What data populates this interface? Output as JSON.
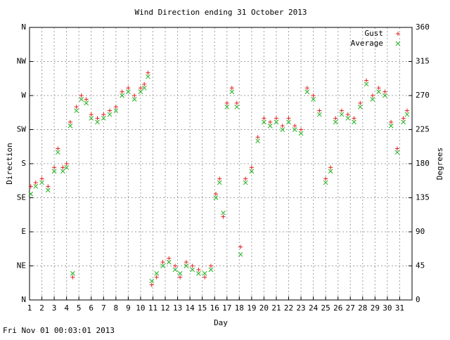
{
  "chart_data": {
    "type": "scatter",
    "title": "Wind Direction ending 31 October 2013",
    "x_label": "Day",
    "y_label": "Direction",
    "y2_label": "Degrees",
    "footer": "Fri Nov 01 00:03:01 2013",
    "xlim": [
      1,
      32
    ],
    "xticks": [
      1,
      2,
      3,
      4,
      5,
      6,
      7,
      8,
      9,
      10,
      11,
      12,
      13,
      14,
      15,
      16,
      17,
      18,
      19,
      20,
      21,
      22,
      23,
      24,
      25,
      26,
      27,
      28,
      29,
      30,
      31
    ],
    "ylim": [
      0,
      360
    ],
    "yticks": [
      {
        "value": 0,
        "label": "N"
      },
      {
        "value": 45,
        "label": "NE"
      },
      {
        "value": 90,
        "label": "E"
      },
      {
        "value": 135,
        "label": "SE"
      },
      {
        "value": 180,
        "label": "S"
      },
      {
        "value": 225,
        "label": "SW"
      },
      {
        "value": 270,
        "label": "W"
      },
      {
        "value": 315,
        "label": "NW"
      },
      {
        "value": 360,
        "label": "N"
      }
    ],
    "y2lim": [
      0,
      360
    ],
    "y2ticks": [
      0,
      45,
      90,
      135,
      180,
      225,
      270,
      315,
      360
    ],
    "grid": true,
    "legend": "top-right",
    "x": [
      1.1,
      1.5,
      2.0,
      2.5,
      3.0,
      3.3,
      3.7,
      4.0,
      4.3,
      4.5,
      4.8,
      5.2,
      5.6,
      6.0,
      6.5,
      7.0,
      7.5,
      8.0,
      8.5,
      9.0,
      9.5,
      10.0,
      10.3,
      10.6,
      10.9,
      11.3,
      11.8,
      12.3,
      12.8,
      13.2,
      13.7,
      14.2,
      14.7,
      15.2,
      15.7,
      16.1,
      16.4,
      16.7,
      17.0,
      17.4,
      17.8,
      18.1,
      18.5,
      19.0,
      19.5,
      20.0,
      20.5,
      21.0,
      21.5,
      22.0,
      22.5,
      23.0,
      23.5,
      24.0,
      24.5,
      25.0,
      25.4,
      25.8,
      26.3,
      26.8,
      27.3,
      27.8,
      28.3,
      28.8,
      29.3,
      29.8,
      30.3,
      30.8,
      31.3,
      31.6
    ],
    "series": [
      {
        "name": "Gust",
        "color": "#e02020",
        "marker": "plus",
        "values": [
          150,
          155,
          160,
          150,
          175,
          200,
          175,
          180,
          235,
          30,
          255,
          270,
          265,
          245,
          240,
          245,
          250,
          255,
          275,
          280,
          270,
          280,
          285,
          300,
          20,
          30,
          50,
          55,
          45,
          30,
          50,
          45,
          40,
          30,
          45,
          140,
          160,
          110,
          260,
          280,
          260,
          70,
          160,
          175,
          215,
          240,
          235,
          240,
          230,
          240,
          230,
          225,
          280,
          270,
          250,
          160,
          175,
          240,
          250,
          245,
          240,
          260,
          290,
          270,
          280,
          275,
          235,
          200,
          240,
          250
        ]
      },
      {
        "name": "Average",
        "color": "#20b020",
        "marker": "cross",
        "values": [
          140,
          150,
          155,
          145,
          170,
          195,
          170,
          175,
          230,
          35,
          250,
          265,
          260,
          240,
          235,
          240,
          245,
          250,
          270,
          275,
          265,
          275,
          280,
          295,
          25,
          35,
          45,
          50,
          40,
          35,
          45,
          40,
          35,
          35,
          40,
          135,
          155,
          115,
          255,
          275,
          255,
          60,
          155,
          170,
          210,
          235,
          230,
          235,
          225,
          235,
          225,
          220,
          275,
          265,
          245,
          155,
          170,
          235,
          245,
          240,
          235,
          255,
          285,
          265,
          275,
          270,
          230,
          195,
          235,
          245
        ]
      }
    ]
  }
}
